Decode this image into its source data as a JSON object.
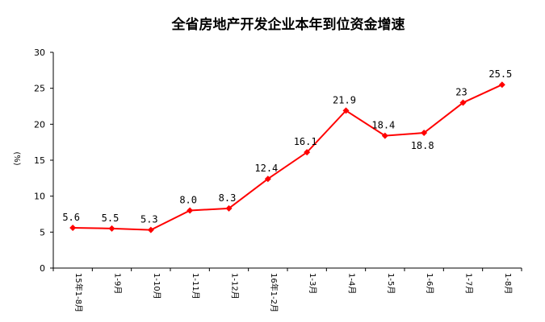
{
  "chart_data": {
    "type": "line",
    "title": "全省房地产开发企业本年到位资金增速",
    "ylabel": "(%)",
    "xlabel": "",
    "ylim": [
      0,
      30
    ],
    "yticks": [
      0,
      5,
      10,
      15,
      20,
      25,
      30
    ],
    "grid": false,
    "legend": "none",
    "categories": [
      "15年1-8月",
      "1-9月",
      "1-10月",
      "1-11月",
      "1-12月",
      "16年1-2月",
      "1-3月",
      "1-4月",
      "1-5月",
      "1-6月",
      "1-7月",
      "1-8月"
    ],
    "series": [
      {
        "values": [
          5.6,
          5.5,
          5.3,
          8.0,
          8.3,
          12.4,
          16.1,
          21.9,
          18.4,
          18.8,
          23,
          25.5
        ],
        "data_labels": [
          "5.6",
          "5.5",
          "5.3",
          "8.0",
          "8.3",
          "12.4",
          "16.1",
          "21.9",
          "18.4",
          "18.8",
          "23",
          "25.5"
        ],
        "color": "#ff0000"
      }
    ]
  }
}
